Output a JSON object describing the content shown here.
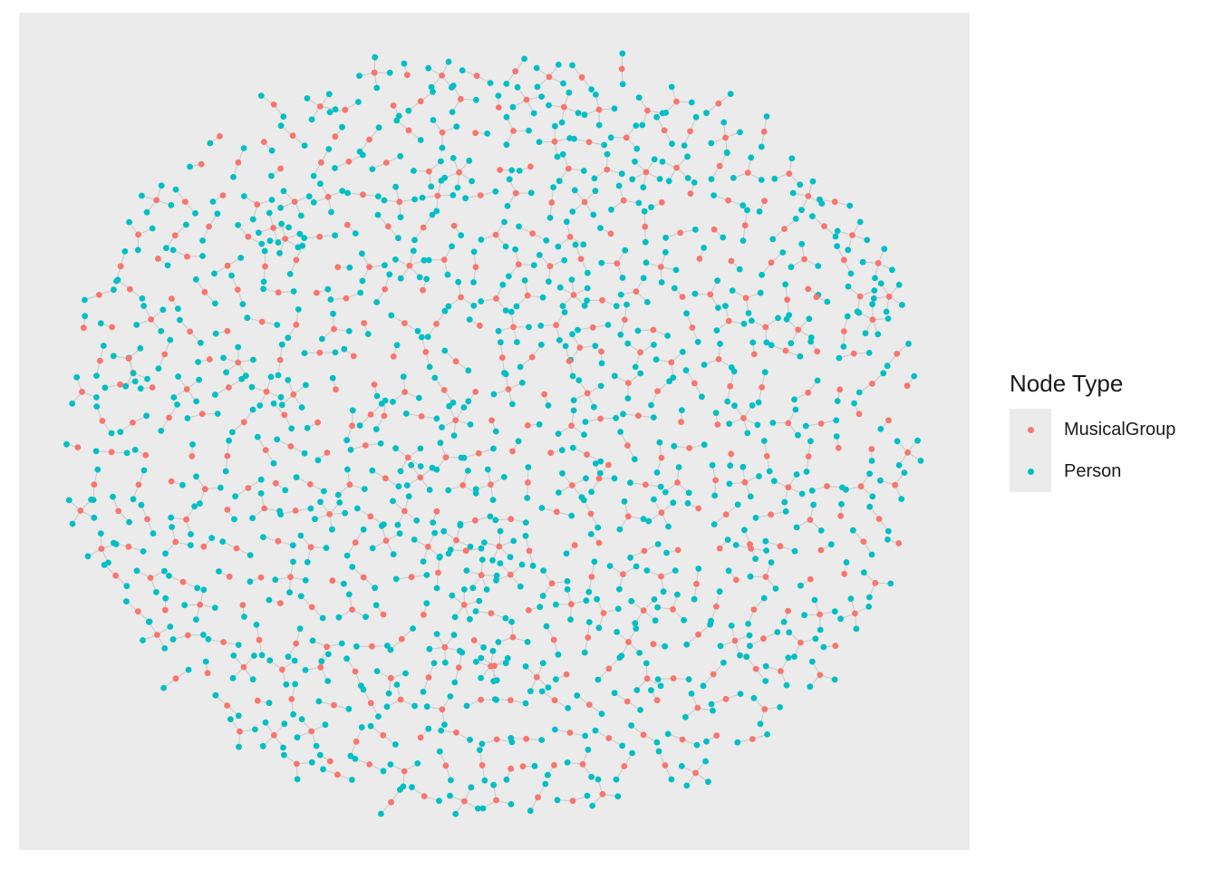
{
  "chart_data": {
    "type": "scatter",
    "subtype": "network-graph",
    "title": "",
    "xlabel": "",
    "ylabel": "",
    "grid": false,
    "axes_visible": false,
    "legend_position": "right",
    "legend": {
      "title": "Node Type",
      "entries": [
        {
          "name": "MusicalGroup",
          "color": "#f8766d"
        },
        {
          "name": "Person",
          "color": "#00bfc4"
        }
      ]
    },
    "edge_color": "#c8c8c8",
    "components": [
      {
        "cx": 0.335,
        "cy": 0.91,
        "leaves": 2
      },
      {
        "cx": 0.53,
        "cy": 0.9,
        "leaves": 1
      },
      {
        "cx": 0.5,
        "cy": 0.78,
        "leaves": 3
      },
      {
        "cx": 0.46,
        "cy": 0.63,
        "leaves": 4
      },
      {
        "cx": 0.62,
        "cy": 0.54,
        "leaves": 1
      },
      {
        "cx": 0.77,
        "cy": 0.64,
        "leaves": 2
      },
      {
        "cx": 0.59,
        "cy": 0.4,
        "leaves": 3
      },
      {
        "cx": 0.28,
        "cy": 0.27,
        "leaves": 5
      },
      {
        "cx": 0.83,
        "cy": 0.33,
        "leaves": 1
      },
      {
        "cx": 0.37,
        "cy": 0.48,
        "leaves": 2
      },
      {
        "cx": 0.12,
        "cy": 0.43,
        "leaves": 3
      }
    ]
  }
}
